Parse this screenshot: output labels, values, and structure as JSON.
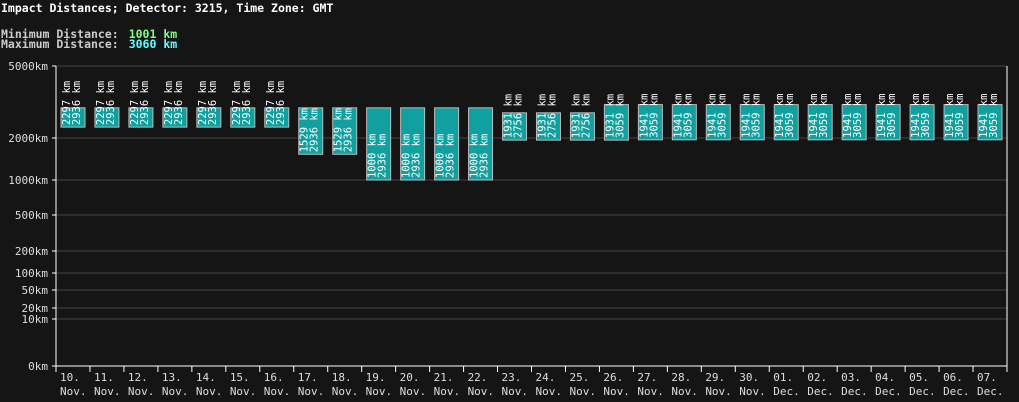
{
  "header": {
    "title": "Impact Distances; Detector: 3215, Time Zone: GMT",
    "min_label": "Minimum Distance:",
    "min_value": "1001 km",
    "min_color": "#80ff80",
    "max_label": "Maximum Distance:",
    "max_value": "3060 km",
    "max_color": "#60ffff"
  },
  "chart_data": {
    "type": "bar",
    "subtype": "floating-range",
    "yscale": "compressed (non-linear)",
    "ylim": [
      0,
      5000
    ],
    "yticks": [
      0,
      10,
      20,
      50,
      100,
      200,
      500,
      1000,
      2000,
      5000
    ],
    "ytick_labels": [
      "0km",
      "10km",
      "20km",
      "50km",
      "100km",
      "200km",
      "500km",
      "1000km",
      "2000km",
      "5000km"
    ],
    "grid": true,
    "bar_color": "#10a0a0",
    "categories": [
      [
        "10.",
        "Nov."
      ],
      [
        "11.",
        "Nov."
      ],
      [
        "12.",
        "Nov."
      ],
      [
        "13.",
        "Nov."
      ],
      [
        "14.",
        "Nov."
      ],
      [
        "15.",
        "Nov."
      ],
      [
        "16.",
        "Nov."
      ],
      [
        "17.",
        "Nov."
      ],
      [
        "18.",
        "Nov."
      ],
      [
        "19.",
        "Nov."
      ],
      [
        "20.",
        "Nov."
      ],
      [
        "21.",
        "Nov."
      ],
      [
        "22.",
        "Nov."
      ],
      [
        "23.",
        "Nov."
      ],
      [
        "24.",
        "Nov."
      ],
      [
        "25.",
        "Nov."
      ],
      [
        "26.",
        "Nov."
      ],
      [
        "27.",
        "Nov."
      ],
      [
        "28.",
        "Nov."
      ],
      [
        "29.",
        "Nov."
      ],
      [
        "30.",
        "Nov."
      ],
      [
        "01.",
        "Dec."
      ],
      [
        "02.",
        "Dec."
      ],
      [
        "03.",
        "Dec."
      ],
      [
        "04.",
        "Dec."
      ],
      [
        "05.",
        "Dec."
      ],
      [
        "06.",
        "Dec."
      ],
      [
        "07.",
        "Dec."
      ]
    ],
    "min": [
      2297,
      2297,
      2297,
      2297,
      2297,
      2297,
      2297,
      1529,
      1529,
      1000,
      1000,
      1000,
      1000,
      1931,
      1931,
      1931,
      1931,
      1941,
      1941,
      1941,
      1941,
      1941,
      1941,
      1941,
      1941,
      1941,
      1941,
      1941
    ],
    "max": [
      2936,
      2936,
      2936,
      2936,
      2936,
      2936,
      2936,
      2936,
      2936,
      2936,
      2936,
      2936,
      2936,
      2756,
      2756,
      2756,
      3059,
      3059,
      3059,
      3059,
      3059,
      3059,
      3059,
      3059,
      3059,
      3059,
      3059,
      3059
    ],
    "unit": "km"
  }
}
